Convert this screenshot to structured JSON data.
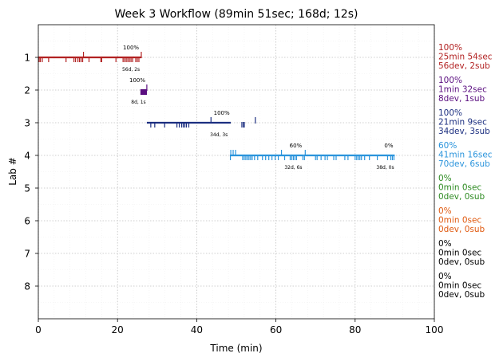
{
  "chart_data": {
    "type": "timeline",
    "title": "Week 3 Workflow (89min 51sec; 168d; 12s)",
    "xlabel": "Time (min)",
    "ylabel": "Lab #",
    "xlim": [
      0,
      100
    ],
    "ylim": [
      9,
      0
    ],
    "xticks": [
      0,
      20,
      40,
      60,
      80,
      100
    ],
    "yticks": [
      1,
      2,
      3,
      4,
      5,
      6,
      7,
      8
    ],
    "grid": true,
    "labs": [
      {
        "lab": 1,
        "color": "#b22222",
        "summary": [
          "100%",
          "25min 54sec",
          "56dev, 2sub"
        ],
        "segments": [
          {
            "start": 0.0,
            "end": 26.0,
            "pct_label": "100%",
            "pct_x": 23.4,
            "count_label": "56d, 2s",
            "count_x": 23.4
          }
        ],
        "dev_ticks": [
          0.2,
          0.5,
          1.0,
          2.6,
          7.0,
          9.0,
          9.4,
          10.0,
          10.4,
          10.8,
          11.2,
          12.8,
          15.8,
          16.0,
          19.6,
          21.4,
          21.8,
          22.2,
          22.6,
          23.0,
          23.4,
          23.8,
          24.6,
          25.0,
          25.4
        ],
        "sub_ticks": [
          11.4,
          26.0
        ]
      },
      {
        "lab": 2,
        "color": "#5b0f80",
        "summary": [
          "100%",
          "1min 32sec",
          "8dev, 1sub"
        ],
        "segments": [
          {
            "start": 25.9,
            "end": 27.4,
            "pct_label": "100%",
            "pct_x": 25.0,
            "count_label": "8d, 1s",
            "count_x": 25.3
          }
        ],
        "dev_ticks": [
          25.9,
          26.1,
          26.3,
          26.5,
          26.7,
          26.9,
          27.1,
          27.3
        ],
        "sub_ticks": [
          27.4
        ]
      },
      {
        "lab": 3,
        "color": "#1c2f80",
        "summary": [
          "100%",
          "21min 9sec",
          "34dev, 3sub"
        ],
        "segments": [
          {
            "start": 27.4,
            "end": 48.6,
            "pct_label": "100%",
            "pct_x": 46.3,
            "count_label": "34d, 3s",
            "count_x": 45.6
          }
        ],
        "dev_ticks": [
          28.4,
          29.4,
          31.9,
          35.0,
          35.6,
          36.2,
          36.6,
          37.0,
          37.4,
          38.0,
          51.4,
          51.8,
          52.0
        ],
        "sub_ticks": [
          43.6,
          54.8
        ]
      },
      {
        "lab": 4,
        "color": "#2b94dc",
        "summary": [
          "60%",
          "41min 16sec",
          "70dev, 6sub"
        ],
        "segments": [
          {
            "start": 48.5,
            "end": 67.0,
            "pct_label": "60%",
            "pct_x": 65.0,
            "count_label": "32d, 6s",
            "count_x": 64.4
          },
          {
            "start": 67.0,
            "end": 90.0,
            "pct_label": "0%",
            "pct_x": 88.5,
            "count_label": "38d, 0s",
            "count_x": 87.6
          }
        ],
        "dev_ticks": [
          48.5,
          51.6,
          52.0,
          52.4,
          52.8,
          53.2,
          53.6,
          54.0,
          54.6,
          55.4,
          56.6,
          57.4,
          58.2,
          59.0,
          59.8,
          60.6,
          62.2,
          63.6,
          64.0,
          64.4,
          64.8,
          65.2,
          66.8,
          67.2,
          70.0,
          70.4,
          71.4,
          72.4,
          73.0,
          74.6,
          75.2,
          77.4,
          78.2,
          80.0,
          80.4,
          80.8,
          81.2,
          81.6,
          82.4,
          83.6,
          85.6,
          88.2,
          89.0,
          89.4,
          89.8
        ],
        "sub_ticks": [
          48.6,
          49.2,
          49.8,
          61.4,
          67.4
        ]
      },
      {
        "lab": 5,
        "color": "#2e8b22",
        "summary": [
          "0%",
          "0min 0sec",
          "0dev, 0sub"
        ],
        "segments": [],
        "dev_ticks": [],
        "sub_ticks": []
      },
      {
        "lab": 6,
        "color": "#e05a10",
        "summary": [
          "0%",
          "0min 0sec",
          "0dev, 0sub"
        ],
        "segments": [],
        "dev_ticks": [],
        "sub_ticks": []
      },
      {
        "lab": 7,
        "color": "#000000",
        "summary": [
          "0%",
          "0min 0sec",
          "0dev, 0sub"
        ],
        "segments": [],
        "dev_ticks": [],
        "sub_ticks": []
      },
      {
        "lab": 8,
        "color": "#000000",
        "summary": [
          "0%",
          "0min 0sec",
          "0dev, 0sub"
        ],
        "segments": [],
        "dev_ticks": [],
        "sub_ticks": []
      }
    ]
  }
}
